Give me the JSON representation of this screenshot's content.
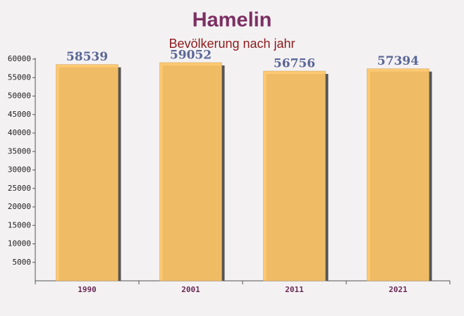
{
  "chart_data": {
    "type": "bar",
    "title": "Hamelin",
    "subtitle": "Bevölkerung nach jahr",
    "categories": [
      "1990",
      "2001",
      "2011",
      "2021"
    ],
    "values": [
      58539,
      59052,
      56756,
      57394
    ],
    "color": "#fdc567",
    "ylim": [
      0,
      60000
    ],
    "yticks": [
      5000,
      10000,
      15000,
      20000,
      25000,
      30000,
      35000,
      40000,
      45000,
      50000,
      55000,
      60000
    ]
  }
}
